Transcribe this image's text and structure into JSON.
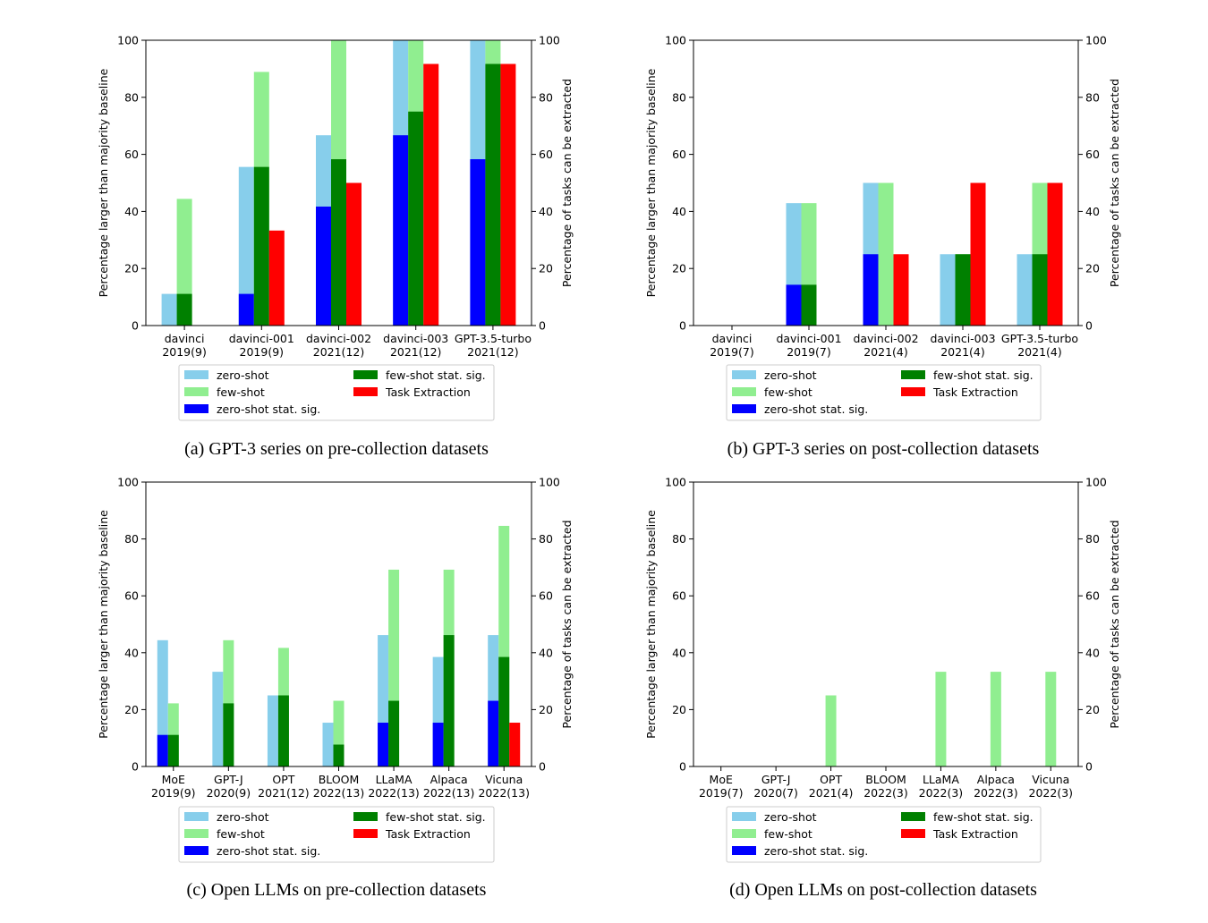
{
  "colors": {
    "zero_shot": "#87CEEB",
    "few_shot": "#90EE90",
    "zero_shot_sig": "#0000FF",
    "few_shot_sig": "#008000",
    "task_extraction": "#FF0000"
  },
  "legend": [
    "zero-shot",
    "few-shot",
    "zero-shot stat. sig.",
    "few-shot stat. sig.",
    "Task Extraction"
  ],
  "y_left_label": "Percentage larger than majority baseline",
  "y_right_label": "Percentage of tasks can be extracted",
  "chart_data": [
    {
      "id": "a",
      "type": "bar",
      "caption": "(a) GPT-3 series on pre-collection datasets",
      "ylim": [
        0,
        100
      ],
      "yticks": [
        0,
        20,
        40,
        60,
        80,
        100
      ],
      "categories": [
        "davinci\n2019(9)",
        "davinci-001\n2019(9)",
        "davinci-002\n2021(12)",
        "davinci-003\n2021(12)",
        "GPT-3.5-turbo\n2021(12)"
      ],
      "series": [
        {
          "name": "zero-shot",
          "values": [
            11.1,
            55.6,
            66.7,
            100,
            100
          ]
        },
        {
          "name": "few-shot",
          "values": [
            44.4,
            88.9,
            100,
            100,
            100
          ]
        },
        {
          "name": "zero-shot stat. sig.",
          "values": [
            0,
            11.1,
            41.7,
            66.7,
            58.3
          ]
        },
        {
          "name": "few-shot stat. sig.",
          "values": [
            11.1,
            55.6,
            58.3,
            75.0,
            91.7
          ]
        },
        {
          "name": "Task Extraction",
          "values": [
            0,
            33.3,
            50.0,
            91.7,
            91.7
          ]
        }
      ]
    },
    {
      "id": "b",
      "type": "bar",
      "caption": "(b) GPT-3 series on post-collection datasets",
      "ylim": [
        0,
        100
      ],
      "yticks": [
        0,
        20,
        40,
        60,
        80,
        100
      ],
      "categories": [
        "davinci\n2019(7)",
        "davinci-001\n2019(7)",
        "davinci-002\n2021(4)",
        "davinci-003\n2021(4)",
        "GPT-3.5-turbo\n2021(4)"
      ],
      "series": [
        {
          "name": "zero-shot",
          "values": [
            0,
            42.9,
            50.0,
            25.0,
            25.0
          ]
        },
        {
          "name": "few-shot",
          "values": [
            0,
            42.9,
            50.0,
            25.0,
            50.0
          ]
        },
        {
          "name": "zero-shot stat. sig.",
          "values": [
            0,
            14.3,
            25.0,
            0,
            0
          ]
        },
        {
          "name": "few-shot stat. sig.",
          "values": [
            0,
            14.3,
            0,
            25.0,
            25.0
          ]
        },
        {
          "name": "Task Extraction",
          "values": [
            0,
            0,
            25.0,
            50.0,
            50.0
          ]
        }
      ]
    },
    {
      "id": "c",
      "type": "bar",
      "caption": "(c) Open LLMs on pre-collection datasets",
      "ylim": [
        0,
        100
      ],
      "yticks": [
        0,
        20,
        40,
        60,
        80,
        100
      ],
      "categories": [
        "MoE\n2019(9)",
        "GPT-J\n2020(9)",
        "OPT\n2021(12)",
        "BLOOM\n2022(13)",
        "LLaMA\n2022(13)",
        "Alpaca\n2022(13)",
        "Vicuna\n2022(13)"
      ],
      "series": [
        {
          "name": "zero-shot",
          "values": [
            44.4,
            33.3,
            25.0,
            15.4,
            46.2,
            38.5,
            46.2
          ]
        },
        {
          "name": "few-shot",
          "values": [
            22.2,
            44.4,
            41.7,
            23.1,
            69.2,
            69.2,
            84.6
          ]
        },
        {
          "name": "zero-shot stat. sig.",
          "values": [
            11.1,
            0,
            0,
            0,
            15.4,
            15.4,
            23.1
          ]
        },
        {
          "name": "few-shot stat. sig.",
          "values": [
            11.1,
            22.2,
            25.0,
            7.7,
            23.1,
            46.2,
            38.5
          ]
        },
        {
          "name": "Task Extraction",
          "values": [
            0,
            0,
            0,
            0,
            0,
            0,
            15.4
          ]
        }
      ]
    },
    {
      "id": "d",
      "type": "bar",
      "caption": "(d) Open LLMs on post-collection datasets",
      "ylim": [
        0,
        100
      ],
      "yticks": [
        0,
        20,
        40,
        60,
        80,
        100
      ],
      "categories": [
        "MoE\n2019(7)",
        "GPT-J\n2020(7)",
        "OPT\n2021(4)",
        "BLOOM\n2022(3)",
        "LLaMA\n2022(3)",
        "Alpaca\n2022(3)",
        "Vicuna\n2022(3)"
      ],
      "series": [
        {
          "name": "zero-shot",
          "values": [
            0,
            0,
            0,
            0,
            0,
            0,
            0
          ]
        },
        {
          "name": "few-shot",
          "values": [
            0,
            0,
            25.0,
            0,
            33.3,
            33.3,
            33.3
          ]
        },
        {
          "name": "zero-shot stat. sig.",
          "values": [
            0,
            0,
            0,
            0,
            0,
            0,
            0
          ]
        },
        {
          "name": "few-shot stat. sig.",
          "values": [
            0,
            0,
            0,
            0,
            0,
            0,
            0
          ]
        },
        {
          "name": "Task Extraction",
          "values": [
            0,
            0,
            0,
            0,
            0,
            0,
            0
          ]
        }
      ]
    }
  ]
}
